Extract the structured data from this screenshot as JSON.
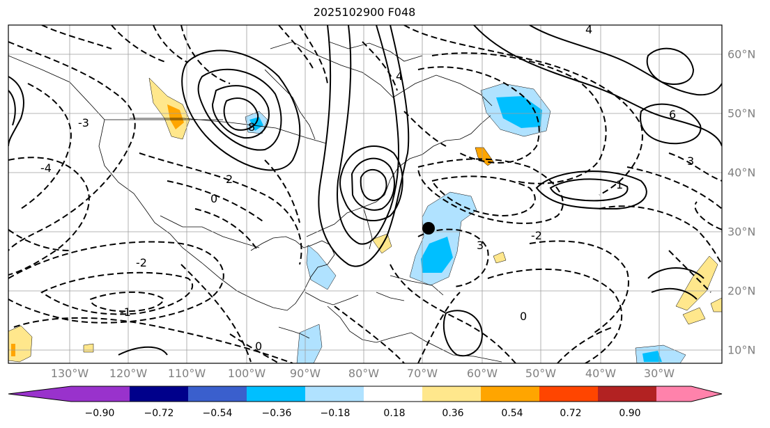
{
  "title": "2025102900 F048",
  "longitude_labels": [
    "130°W",
    "120°W",
    "110°W",
    "100°W",
    "90°W",
    "80°W",
    "70°W",
    "60°W",
    "50°W",
    "40°W",
    "30°W"
  ],
  "latitude_labels": [
    "60°N",
    "50°N",
    "40°N",
    "30°N",
    "20°N",
    "10°N"
  ],
  "contour_labels": [
    "-4",
    "-3",
    "-2",
    "-1",
    "0",
    "1",
    "2",
    "3",
    "4",
    "6",
    "8"
  ],
  "colorbar": {
    "ticks": [
      "−0.90",
      "−0.72",
      "−0.54",
      "−0.36",
      "−0.18",
      "0.18",
      "0.36",
      "0.54",
      "0.72",
      "0.90"
    ],
    "colors": [
      "#9932cc",
      "#00008b",
      "#3a5fcd",
      "#00bfff",
      "#b0e2ff",
      "#ffffff",
      "#ffe78c",
      "#ffa500",
      "#ff4500",
      "#b22222",
      "#ff82ab"
    ]
  },
  "storm_marker": {
    "label": "center",
    "lon": -69,
    "lat": 30.5
  }
}
